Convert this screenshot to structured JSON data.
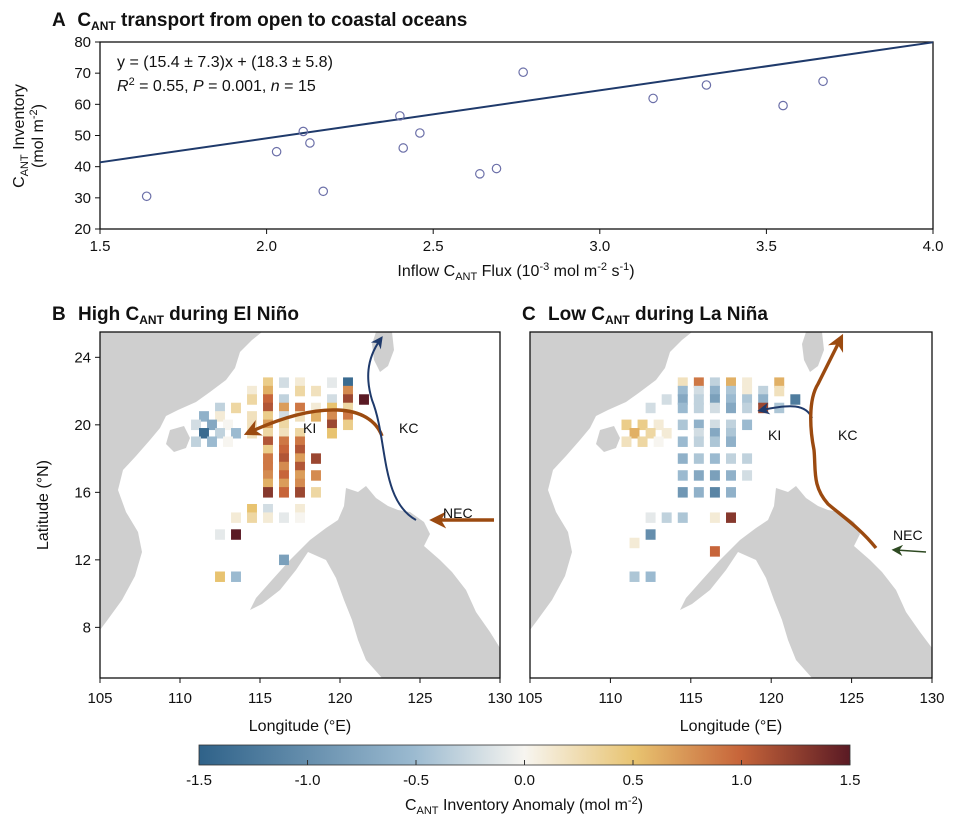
{
  "colors": {
    "fit_line": "#1f3a6b",
    "point_stroke": "#6b6fa8",
    "land": "#cfcfcf",
    "arrow_brown": "#9b4a10",
    "arrow_navy": "#1f3a6b",
    "arrow_green": "#2e4a22"
  },
  "chart_data": [
    {
      "id": "A",
      "type": "scatter",
      "panel_letter": "A",
      "title": "C",
      "title_sub": "ANT",
      "title_rest": " transport from open to coastal oceans",
      "xlabel": "Inflow C",
      "xlabel_sub": "ANT",
      "xlabel_rest": " Flux (10",
      "xlabel_sup1": "-3",
      "xlabel_rest2": " mol m",
      "xlabel_sup2": "-2",
      "xlabel_rest3": " s",
      "xlabel_sup3": "-1",
      "xlabel_end": ")",
      "ylabel_line1": "C",
      "ylabel_line1_sub": "ANT",
      "ylabel_line1_rest": " Inventory",
      "ylabel_line2": "(mol m",
      "ylabel_line2_sup": "-2",
      "ylabel_line2_end": ")",
      "xlim": [
        1.5,
        4.0
      ],
      "ylim": [
        20,
        80
      ],
      "xticks": [
        "1.5",
        "2.0",
        "2.5",
        "3.0",
        "3.5",
        "4.0"
      ],
      "yticks": [
        "20",
        "30",
        "40",
        "50",
        "60",
        "70",
        "80"
      ],
      "points": [
        [
          1.64,
          30.5
        ],
        [
          2.03,
          44.8
        ],
        [
          2.11,
          51.3
        ],
        [
          2.13,
          47.6
        ],
        [
          2.17,
          32.1
        ],
        [
          2.4,
          56.3
        ],
        [
          2.41,
          46.0
        ],
        [
          2.46,
          50.8
        ],
        [
          2.64,
          37.7
        ],
        [
          2.69,
          39.4
        ],
        [
          2.77,
          70.3
        ],
        [
          3.16,
          61.9
        ],
        [
          3.32,
          66.2
        ],
        [
          3.55,
          59.6
        ],
        [
          3.67,
          67.4
        ]
      ],
      "fit": {
        "slope": 15.4,
        "intercept": 18.3
      },
      "eq_line1": "y = (15.4 ± 7.3)x + (18.3 ± 5.8)",
      "eq_r": "R",
      "eq_r_sup": "2",
      "eq_r_mid": " = 0.55, ",
      "eq_p": "P",
      "eq_p_mid": " = 0.001, ",
      "eq_n": "n",
      "eq_n_mid": " = 15"
    },
    {
      "id": "B",
      "type": "heatmap",
      "panel_letter": "B",
      "title": "High C",
      "title_sub": "ANT",
      "title_rest": " during El Niño",
      "xlabel": "Longitude (°E)",
      "ylabel": "Latitude (°N)",
      "xlim": [
        105,
        130
      ],
      "ylim": [
        5,
        25.5
      ],
      "xticks": [
        "105",
        "110",
        "115",
        "120",
        "125",
        "130"
      ],
      "yticks": [
        "8",
        "12",
        "16",
        "20",
        "24"
      ],
      "labels": [
        "KI",
        "KC",
        "NEC"
      ],
      "cells": [
        [
          115.5,
          22.5,
          0.4
        ],
        [
          116.5,
          22.5,
          -0.2
        ],
        [
          117.5,
          22.5,
          0.1
        ],
        [
          119.5,
          22.5,
          -0.1
        ],
        [
          120.5,
          22.5,
          -1.4
        ],
        [
          114.5,
          22,
          0.1
        ],
        [
          115.5,
          22,
          0.6
        ],
        [
          117.5,
          22,
          0.3
        ],
        [
          118.5,
          22,
          0.2
        ],
        [
          120.5,
          22,
          0.8
        ],
        [
          114.5,
          21.5,
          0.3
        ],
        [
          115.5,
          21.5,
          1.0
        ],
        [
          116.5,
          21.5,
          -0.3
        ],
        [
          119.5,
          21.5,
          -0.2
        ],
        [
          120.5,
          21.5,
          1.2
        ],
        [
          121.5,
          21.5,
          1.5
        ],
        [
          112.5,
          21,
          -0.3
        ],
        [
          113.5,
          21,
          0.3
        ],
        [
          115.5,
          21,
          1.1
        ],
        [
          116.5,
          21,
          0.7
        ],
        [
          117.5,
          21,
          0.9
        ],
        [
          118.5,
          21,
          0.1
        ],
        [
          119.5,
          21,
          0.5
        ],
        [
          120.5,
          21,
          0.3
        ],
        [
          111.5,
          20.5,
          -0.6
        ],
        [
          112.5,
          20.5,
          0.1
        ],
        [
          114.5,
          20.5,
          0.2
        ],
        [
          115.5,
          20.5,
          0.4
        ],
        [
          116.5,
          20.5,
          -0.2
        ],
        [
          117.5,
          20.5,
          0.2
        ],
        [
          118.5,
          20.5,
          0.6
        ],
        [
          119.5,
          20.5,
          0.8
        ],
        [
          120.5,
          20.5,
          0.9
        ],
        [
          111,
          20,
          -0.2
        ],
        [
          112,
          20,
          -0.7
        ],
        [
          113,
          20,
          0.0
        ],
        [
          114.5,
          20,
          0.2
        ],
        [
          115.5,
          20,
          0.7
        ],
        [
          116.5,
          20,
          0.3
        ],
        [
          119.5,
          20,
          1.2
        ],
        [
          120.5,
          20,
          0.4
        ],
        [
          111.5,
          19.5,
          -1.4
        ],
        [
          112.5,
          19.5,
          -0.3
        ],
        [
          113.5,
          19.5,
          -0.5
        ],
        [
          114.5,
          19.5,
          0.2
        ],
        [
          115.5,
          19.5,
          0.3
        ],
        [
          116.5,
          19.5,
          0.2
        ],
        [
          117.5,
          19.5,
          0.3
        ],
        [
          119.5,
          19.5,
          0.5
        ],
        [
          111,
          19,
          -0.3
        ],
        [
          112,
          19,
          -0.5
        ],
        [
          113,
          19,
          0.0
        ],
        [
          115.5,
          19,
          1.1
        ],
        [
          116.5,
          19,
          0.9
        ],
        [
          117.5,
          19,
          0.9
        ],
        [
          115.5,
          18.5,
          0.4
        ],
        [
          116.5,
          18.5,
          1.0
        ],
        [
          117.5,
          18.5,
          1.1
        ],
        [
          115.5,
          18,
          0.9
        ],
        [
          116.5,
          18,
          1.1
        ],
        [
          117.5,
          18,
          0.7
        ],
        [
          118.5,
          18,
          1.2
        ],
        [
          115.5,
          17.5,
          0.9
        ],
        [
          116.5,
          17.5,
          0.8
        ],
        [
          117.5,
          17.5,
          1.1
        ],
        [
          115.5,
          17,
          0.8
        ],
        [
          116.5,
          17,
          1.0
        ],
        [
          117.5,
          17,
          0.7
        ],
        [
          118.5,
          17,
          0.8
        ],
        [
          115.5,
          16.5,
          0.6
        ],
        [
          116.5,
          16.5,
          0.7
        ],
        [
          117.5,
          16.5,
          0.8
        ],
        [
          115.5,
          16,
          1.3
        ],
        [
          116.5,
          16,
          1.0
        ],
        [
          117.5,
          16,
          1.2
        ],
        [
          118.5,
          16,
          0.3
        ],
        [
          114.5,
          15,
          0.5
        ],
        [
          115.5,
          15,
          -0.2
        ],
        [
          117.5,
          15,
          0.1
        ],
        [
          113.5,
          14.5,
          0.1
        ],
        [
          114.5,
          14.5,
          0.3
        ],
        [
          115.5,
          14.5,
          0.1
        ],
        [
          116.5,
          14.5,
          -0.1
        ],
        [
          117.5,
          14.5,
          0.0
        ],
        [
          113.5,
          13.5,
          1.5
        ],
        [
          112.5,
          13.5,
          -0.1
        ],
        [
          116.5,
          12,
          -0.8
        ],
        [
          112.5,
          11,
          0.5
        ],
        [
          113.5,
          11,
          -0.5
        ]
      ]
    },
    {
      "id": "C",
      "type": "heatmap",
      "panel_letter": "C",
      "title": "Low C",
      "title_sub": "ANT",
      "title_rest": " during La Niña",
      "xlabel": "Longitude (°E)",
      "xlim": [
        105,
        130
      ],
      "ylim": [
        5,
        25.5
      ],
      "xticks": [
        "105",
        "110",
        "115",
        "120",
        "125",
        "130"
      ],
      "labels": [
        "KI",
        "KC",
        "NEC"
      ],
      "cells": [
        [
          114.5,
          22.5,
          0.2
        ],
        [
          115.5,
          22.5,
          0.9
        ],
        [
          116.5,
          22.5,
          -0.3
        ],
        [
          117.5,
          22.5,
          0.6
        ],
        [
          118.5,
          22.5,
          0.1
        ],
        [
          120.5,
          22.5,
          0.6
        ],
        [
          114.5,
          22,
          -0.5
        ],
        [
          115.5,
          22,
          -0.2
        ],
        [
          116.5,
          22,
          -0.6
        ],
        [
          117.5,
          22,
          -0.4
        ],
        [
          118.5,
          22,
          0.1
        ],
        [
          119.5,
          22,
          -0.3
        ],
        [
          120.5,
          22,
          0.2
        ],
        [
          113.5,
          21.5,
          -0.2
        ],
        [
          114.5,
          21.5,
          -0.7
        ],
        [
          115.5,
          21.5,
          -0.3
        ],
        [
          116.5,
          21.5,
          -0.8
        ],
        [
          117.5,
          21.5,
          -0.5
        ],
        [
          118.5,
          21.5,
          -0.4
        ],
        [
          119.5,
          21.5,
          -0.6
        ],
        [
          121.5,
          21.5,
          -1.2
        ],
        [
          112.5,
          21,
          -0.2
        ],
        [
          114.5,
          21,
          -0.5
        ],
        [
          115.5,
          21,
          -0.3
        ],
        [
          116.5,
          21,
          -0.2
        ],
        [
          117.5,
          21,
          -0.7
        ],
        [
          118.5,
          21,
          -0.3
        ],
        [
          119.5,
          21,
          1.2
        ],
        [
          120.5,
          21,
          -0.4
        ],
        [
          111,
          20,
          0.4
        ],
        [
          112,
          20,
          0.4
        ],
        [
          113,
          20,
          0.1
        ],
        [
          114.5,
          20,
          -0.4
        ],
        [
          115.5,
          20,
          -0.6
        ],
        [
          116.5,
          20,
          -0.2
        ],
        [
          117.5,
          20,
          -0.3
        ],
        [
          118.5,
          20,
          -0.5
        ],
        [
          111.5,
          19.5,
          0.6
        ],
        [
          112.5,
          19.5,
          0.3
        ],
        [
          113.5,
          19.5,
          0.1
        ],
        [
          115.5,
          19.5,
          -0.2
        ],
        [
          116.5,
          19.5,
          -0.7
        ],
        [
          117.5,
          19.5,
          -0.4
        ],
        [
          111,
          19,
          0.2
        ],
        [
          112,
          19,
          0.3
        ],
        [
          113,
          19,
          0.0
        ],
        [
          114.5,
          19,
          -0.5
        ],
        [
          115.5,
          19,
          -0.3
        ],
        [
          116.5,
          19,
          -0.4
        ],
        [
          117.5,
          19,
          -0.6
        ],
        [
          114.5,
          18,
          -0.6
        ],
        [
          115.5,
          18,
          -0.4
        ],
        [
          116.5,
          18,
          -0.5
        ],
        [
          117.5,
          18,
          -0.3
        ],
        [
          118.5,
          18,
          -0.3
        ],
        [
          114.5,
          17,
          -0.5
        ],
        [
          115.5,
          17,
          -0.7
        ],
        [
          116.5,
          17,
          -0.8
        ],
        [
          117.5,
          17,
          -0.6
        ],
        [
          118.5,
          17,
          -0.2
        ],
        [
          114.5,
          16,
          -0.9
        ],
        [
          115.5,
          16,
          -0.6
        ],
        [
          116.5,
          16,
          -1.1
        ],
        [
          117.5,
          16,
          -0.6
        ],
        [
          112.5,
          14.5,
          -0.1
        ],
        [
          113.5,
          14.5,
          -0.3
        ],
        [
          114.5,
          14.5,
          -0.4
        ],
        [
          116.5,
          14.5,
          0.1
        ],
        [
          117.5,
          14.5,
          1.3
        ],
        [
          112.5,
          13.5,
          -1.0
        ],
        [
          111.5,
          13,
          0.1
        ],
        [
          116.5,
          12.5,
          1.0
        ],
        [
          112.5,
          11,
          -0.5
        ],
        [
          111.5,
          11,
          -0.4
        ]
      ]
    }
  ],
  "colorbar": {
    "min": -1.5,
    "max": 1.5,
    "ticks": [
      "-1.5",
      "-1.0",
      "-0.5",
      "0.0",
      "0.5",
      "1.0",
      "1.5"
    ],
    "label": "C",
    "label_sub": "ANT",
    "label_rest": " Inventory Anomaly (mol m",
    "label_sup": "-2",
    "label_end": ")"
  }
}
